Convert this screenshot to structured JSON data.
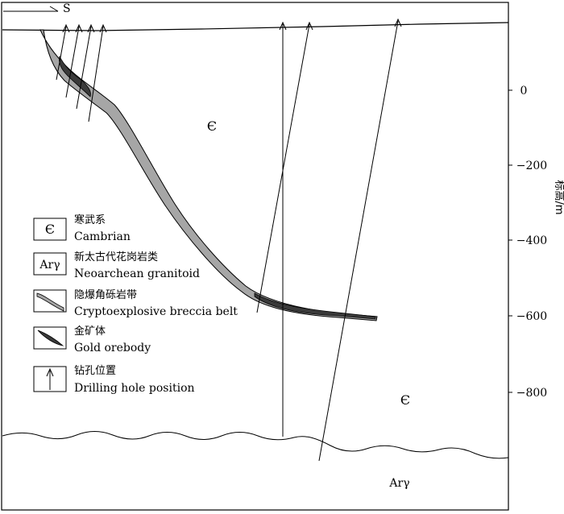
{
  "north_arrow_label": "S",
  "axis": {
    "unit_label": "标高/m",
    "ticks": [
      "0",
      "−200",
      "−400",
      "−600",
      "−800"
    ]
  },
  "labels": {
    "cambrian_upper": "Є",
    "cambrian_lower": "Є",
    "neoarchean": "Arγ"
  },
  "legend": {
    "items": [
      {
        "symbol": "Є",
        "cn": "寒武系",
        "en": "Cambrian"
      },
      {
        "symbol": "Arγ",
        "cn": "新太古代花岗岩类",
        "en": "Neoarchean  granitoid"
      },
      {
        "symbol": "",
        "cn": "隐爆角砾岩带",
        "en": "Cryptoexplosive breccia belt"
      },
      {
        "symbol": "",
        "cn": "金矿体",
        "en": "Gold orebody"
      },
      {
        "symbol": "",
        "cn": "钻孔位置",
        "en": "Drilling hole position"
      }
    ]
  },
  "colors": {
    "breccia_fill": "#a6a6a6",
    "orebody_fill": "#3a3a3a",
    "line": "#000000"
  }
}
